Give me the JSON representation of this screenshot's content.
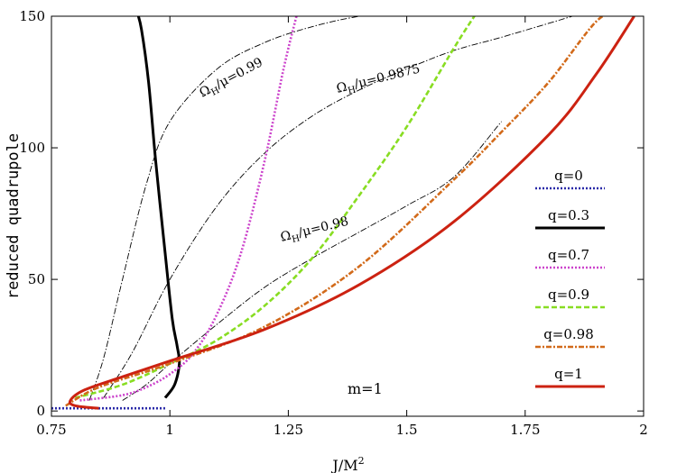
{
  "chart_data": {
    "type": "line",
    "title": "",
    "xlabel": "J/M²",
    "ylabel": "reduced quadrupole",
    "xlim": [
      0.75,
      2.0
    ],
    "ylim": [
      -2,
      150
    ],
    "xticks": [
      0.75,
      1.0,
      1.25,
      1.5,
      1.75,
      2.0
    ],
    "xtick_labels": [
      "0.75",
      "1",
      "1.25",
      "1.5",
      "1.75",
      "2"
    ],
    "yticks": [
      0,
      50,
      100,
      150
    ],
    "ytick_labels": [
      "0",
      "50",
      "100",
      "150"
    ],
    "grid": false,
    "legend_position": "right",
    "series": [
      {
        "name": "q=0",
        "color": "#2a2aa8",
        "style": "dotted",
        "x": [
          0.75,
          0.99
        ],
        "y": [
          1,
          1
        ]
      },
      {
        "name": "q=0.3",
        "color": "#000000",
        "style": "solid",
        "x": [
          0.99,
          1.01,
          1.02,
          1.015,
          1.005,
          0.99,
          0.97,
          0.955,
          0.94,
          0.93
        ],
        "y": [
          5,
          10,
          18,
          25,
          35,
          60,
          95,
          125,
          145,
          152
        ]
      },
      {
        "name": "q=0.7",
        "color": "#cc44cc",
        "style": "dotted",
        "x": [
          0.81,
          0.9,
          0.95,
          1.0,
          1.05,
          1.1,
          1.15,
          1.2,
          1.24,
          1.27
        ],
        "y": [
          4,
          6,
          9,
          14,
          22,
          37,
          60,
          95,
          130,
          152
        ]
      },
      {
        "name": "q=0.9",
        "color": "#88dd22",
        "style": "dashed",
        "x": [
          0.8,
          0.9,
          1.0,
          1.1,
          1.2,
          1.3,
          1.4,
          1.5,
          1.6,
          1.65
        ],
        "y": [
          5,
          10,
          18,
          27,
          40,
          58,
          82,
          108,
          138,
          152
        ]
      },
      {
        "name": "q=0.98",
        "color": "#d26a1a",
        "style": "dashdot",
        "x": [
          0.78,
          0.85,
          1.0,
          1.2,
          1.4,
          1.6,
          1.7,
          1.8,
          1.9,
          1.95
        ],
        "y": [
          2,
          9,
          18,
          32,
          55,
          88,
          106,
          125,
          148,
          152
        ]
      },
      {
        "name": "q=1",
        "color": "#cc2211",
        "style": "solid",
        "x": [
          0.85,
          0.8,
          0.79,
          0.82,
          0.9,
          1.0,
          1.2,
          1.4,
          1.6,
          1.8,
          1.9,
          1.98
        ],
        "y": [
          1,
          2,
          4,
          8,
          13,
          19,
          31,
          48,
          72,
          105,
          128,
          150
        ]
      }
    ],
    "isolines": [
      {
        "label": "ΩH/μ=0.99",
        "x": [
          0.83,
          0.86,
          0.9,
          0.95,
          1.0,
          1.1,
          1.2,
          1.3,
          1.4,
          1.5
        ],
        "y": [
          4,
          20,
          50,
          86,
          110,
          130,
          140,
          146,
          150,
          152
        ]
      },
      {
        "label": "ΩH/μ=0.9875",
        "x": [
          0.86,
          0.92,
          1.0,
          1.1,
          1.2,
          1.3,
          1.4,
          1.5,
          1.6,
          1.7,
          1.85
        ],
        "y": [
          5,
          22,
          50,
          78,
          98,
          112,
          122,
          130,
          137,
          142,
          150
        ]
      },
      {
        "label": "ΩH/μ=0.98",
        "x": [
          0.9,
          0.95,
          1.0,
          1.1,
          1.2,
          1.3,
          1.4,
          1.5,
          1.6,
          1.7
        ],
        "y": [
          4,
          10,
          18,
          33,
          47,
          58,
          68,
          78,
          89,
          110
        ]
      }
    ],
    "annotations": [
      "m=1"
    ]
  },
  "labels": {
    "isoline_099_main": "Ω",
    "isoline_099_sub": "H",
    "isoline_099_rest": "/μ=0.99",
    "isoline_09875_main": "Ω",
    "isoline_09875_sub": "H",
    "isoline_09875_rest": "/μ=0.9875",
    "isoline_098_main": "Ω",
    "isoline_098_sub": "H",
    "isoline_098_rest": "/μ=0.98",
    "m_label": "m=1",
    "xlabel_main": "J/M",
    "xlabel_sup": "2"
  }
}
